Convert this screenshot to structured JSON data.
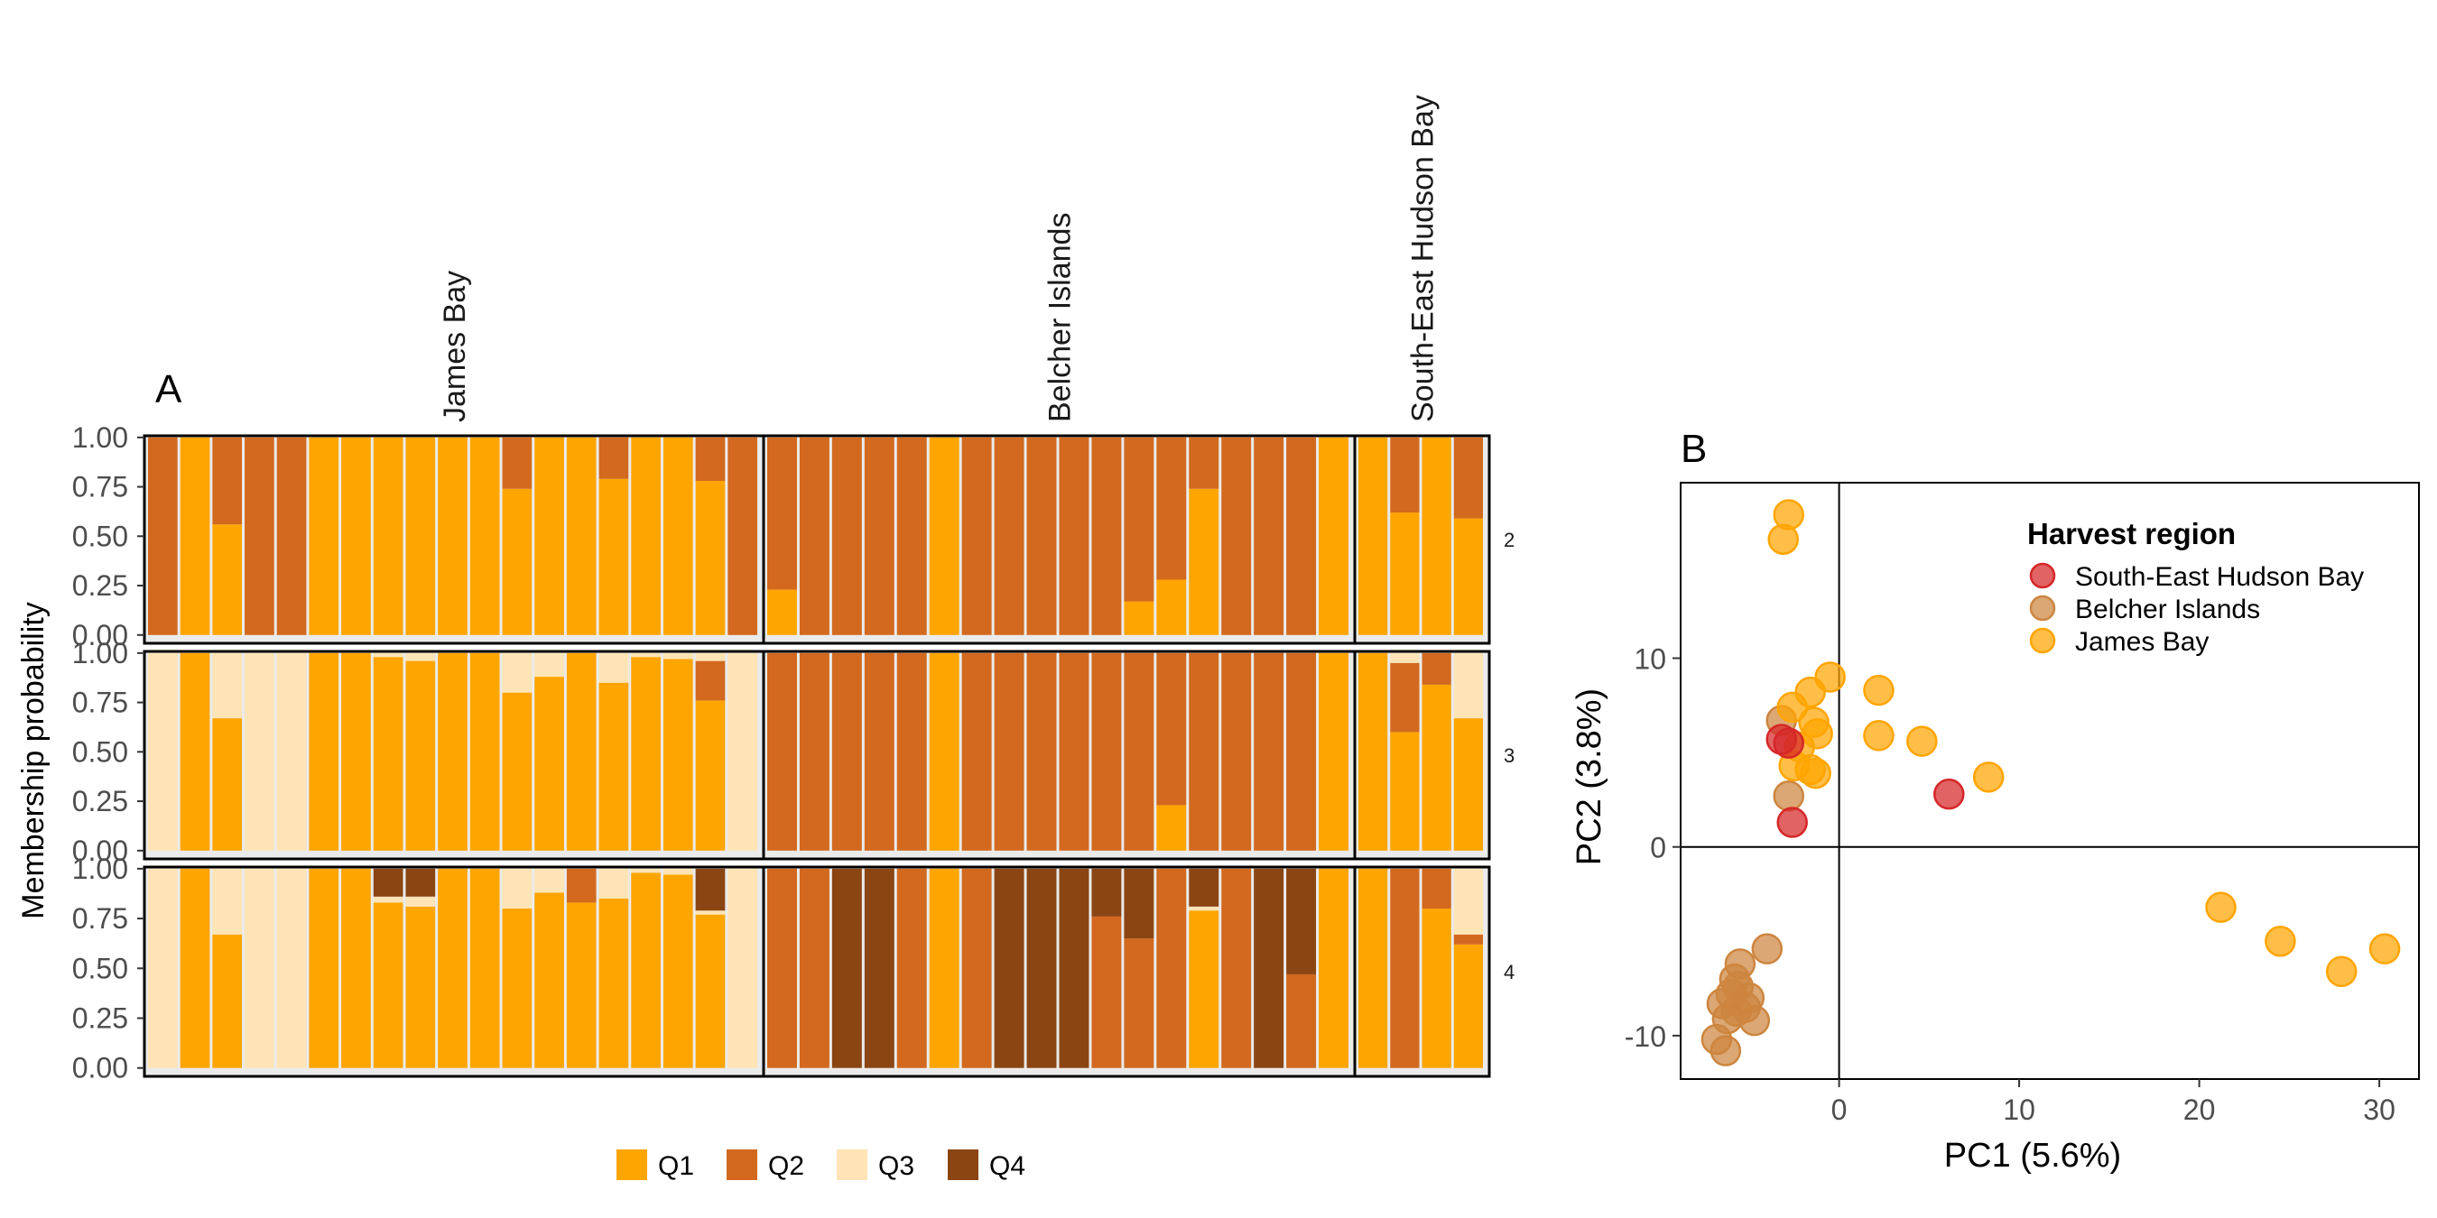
{
  "chart_data": [
    {
      "panel_label": "A",
      "type": "bar",
      "stacked": true,
      "ylabel": "Membership probability",
      "ylim": [
        0,
        1
      ],
      "y_ticks": [
        "0.00",
        "0.25",
        "0.50",
        "0.75",
        "1.00"
      ],
      "facet_columns": [
        {
          "label": "James Bay",
          "n": 19
        },
        {
          "label": "Belcher Islands",
          "n": 18
        },
        {
          "label": "South-East Hudson Bay",
          "n": 4
        }
      ],
      "legend": [
        {
          "label": "Q1",
          "color": "#FFA500"
        },
        {
          "label": "Q2",
          "color": "#D2691E"
        },
        {
          "label": "Q3",
          "color": "#FFE4B5"
        },
        {
          "label": "Q4",
          "color": "#8B4513"
        }
      ],
      "facets": [
        {
          "k_label": "2",
          "groups": [
            [
              [
                0,
                1
              ],
              [
                1,
                0
              ],
              [
                0.56,
                0.44
              ],
              [
                0,
                1
              ],
              [
                0,
                1
              ],
              [
                1,
                0
              ],
              [
                1,
                0
              ],
              [
                1,
                0
              ],
              [
                1,
                0
              ],
              [
                1,
                0
              ],
              [
                1,
                0
              ],
              [
                0.74,
                0.26
              ],
              [
                1,
                0
              ],
              [
                1,
                0
              ],
              [
                0.79,
                0.21
              ],
              [
                1,
                0
              ],
              [
                1,
                0
              ],
              [
                0.78,
                0.22
              ],
              [
                0,
                1
              ]
            ],
            [
              [
                0.23,
                0.77
              ],
              [
                0,
                1
              ],
              [
                0,
                1
              ],
              [
                0,
                1
              ],
              [
                0,
                1
              ],
              [
                1,
                0
              ],
              [
                0,
                1
              ],
              [
                0,
                1
              ],
              [
                0,
                1
              ],
              [
                0,
                1
              ],
              [
                0,
                1
              ],
              [
                0.17,
                0.83
              ],
              [
                0.28,
                0.72
              ],
              [
                0.74,
                0.26
              ],
              [
                0,
                1
              ],
              [
                0,
                1
              ],
              [
                0,
                1
              ],
              [
                1,
                0
              ]
            ],
            [
              [
                1,
                0
              ],
              [
                0.62,
                0.38
              ],
              [
                1,
                0
              ],
              [
                0.59,
                0.41
              ]
            ]
          ]
        },
        {
          "k_label": "3",
          "groups": [
            [
              [
                0,
                0,
                1
              ],
              [
                1,
                0,
                0
              ],
              [
                0.67,
                0,
                0.33
              ],
              [
                0,
                0,
                1
              ],
              [
                0,
                0,
                1
              ],
              [
                1,
                0,
                0
              ],
              [
                1,
                0,
                0
              ],
              [
                0.98,
                0,
                0.02
              ],
              [
                0.96,
                0,
                0.04
              ],
              [
                1,
                0,
                0
              ],
              [
                1,
                0,
                0
              ],
              [
                0.8,
                0,
                0.2
              ],
              [
                0.88,
                0,
                0.12
              ],
              [
                1,
                0,
                0
              ],
              [
                0.85,
                0,
                0.15
              ],
              [
                0.98,
                0,
                0.02
              ],
              [
                0.97,
                0,
                0.03
              ],
              [
                0.76,
                0.2,
                0.04
              ],
              [
                0,
                0,
                1
              ]
            ],
            [
              [
                0,
                1,
                0
              ],
              [
                0,
                1,
                0
              ],
              [
                0,
                1,
                0
              ],
              [
                0,
                1,
                0
              ],
              [
                0,
                1,
                0
              ],
              [
                1,
                0,
                0
              ],
              [
                0,
                1,
                0
              ],
              [
                0,
                1,
                0
              ],
              [
                0,
                1,
                0
              ],
              [
                0,
                1,
                0
              ],
              [
                0,
                1,
                0
              ],
              [
                0,
                1,
                0
              ],
              [
                0.23,
                0.77,
                0
              ],
              [
                0,
                1,
                0
              ],
              [
                0,
                1,
                0
              ],
              [
                0,
                1,
                0
              ],
              [
                0,
                1,
                0
              ],
              [
                1,
                0,
                0
              ]
            ],
            [
              [
                1,
                0,
                0
              ],
              [
                0.6,
                0.35,
                0.05
              ],
              [
                0.84,
                0.16,
                0
              ],
              [
                0.67,
                0,
                0.33
              ]
            ]
          ]
        },
        {
          "k_label": "4",
          "groups": [
            [
              [
                0,
                0,
                1,
                0
              ],
              [
                1,
                0,
                0,
                0
              ],
              [
                0.67,
                0,
                0.33,
                0
              ],
              [
                0,
                0,
                1,
                0
              ],
              [
                0,
                0,
                1,
                0
              ],
              [
                1,
                0,
                0,
                0
              ],
              [
                1,
                0,
                0,
                0
              ],
              [
                0.83,
                0,
                0.03,
                0.14
              ],
              [
                0.81,
                0,
                0.05,
                0.14
              ],
              [
                1,
                0,
                0,
                0
              ],
              [
                1,
                0,
                0,
                0
              ],
              [
                0.8,
                0,
                0.2,
                0
              ],
              [
                0.88,
                0,
                0.12,
                0
              ],
              [
                0.83,
                0.17,
                0,
                0
              ],
              [
                0.85,
                0,
                0.15,
                0
              ],
              [
                0.98,
                0,
                0.02,
                0
              ],
              [
                0.97,
                0,
                0.03,
                0
              ],
              [
                0.77,
                0,
                0.02,
                0.21
              ],
              [
                0,
                0,
                1,
                0
              ]
            ],
            [
              [
                0,
                1,
                0,
                0
              ],
              [
                0,
                1,
                0,
                0
              ],
              [
                0,
                0,
                0,
                1
              ],
              [
                0,
                0,
                0,
                1
              ],
              [
                0,
                1,
                0,
                0
              ],
              [
                1,
                0,
                0,
                0
              ],
              [
                0,
                1,
                0,
                0
              ],
              [
                0,
                0,
                0,
                1
              ],
              [
                0,
                0,
                0,
                1
              ],
              [
                0,
                0,
                0,
                1
              ],
              [
                0,
                0.76,
                0,
                0.24
              ],
              [
                0,
                0.65,
                0,
                0.35
              ],
              [
                0,
                1,
                0,
                0
              ],
              [
                0.79,
                0,
                0.02,
                0.19
              ],
              [
                0,
                1,
                0,
                0
              ],
              [
                0,
                0,
                0,
                1
              ],
              [
                0,
                0.47,
                0,
                0.53
              ],
              [
                1,
                0,
                0,
                0
              ]
            ],
            [
              [
                1,
                0,
                0,
                0
              ],
              [
                0,
                1,
                0,
                0
              ],
              [
                0.8,
                0.2,
                0,
                0
              ],
              [
                0.62,
                0.05,
                0.33,
                0
              ]
            ]
          ]
        }
      ]
    },
    {
      "panel_label": "B",
      "type": "scatter",
      "xlabel": "PC1 (5.6%)",
      "ylabel": "PC2 (3.8%)",
      "xlim": [
        -8.8,
        32.2
      ],
      "ylim": [
        -12.3,
        19.3
      ],
      "x_ticks": [
        "0",
        "10",
        "20",
        "30"
      ],
      "y_ticks": [
        "-10",
        "0",
        "10"
      ],
      "x_tick_values": [
        0,
        10,
        20,
        30
      ],
      "y_tick_values": [
        -10,
        0,
        10
      ],
      "zero_lines": true,
      "legend_title": "Harvest region",
      "legend_position": "top-right",
      "series": [
        {
          "name": "South-East Hudson Bay",
          "color": "#D62728",
          "x": [
            -2.6,
            -2.8,
            -3.2,
            6.1
          ],
          "y": [
            1.3,
            5.5,
            5.7,
            2.8
          ]
        },
        {
          "name": "Belcher Islands",
          "color": "#CD853F",
          "x": [
            -2.8,
            -3.2,
            -4.0,
            -5.5,
            -5.8,
            -6.0,
            -6.5,
            -6.2,
            -5.7,
            -5.0,
            -4.7,
            -6.8,
            -6.3,
            -5.2,
            -5.6
          ],
          "y": [
            2.7,
            6.7,
            -5.4,
            -6.2,
            -7.0,
            -7.8,
            -8.3,
            -9.1,
            -8.7,
            -8.0,
            -9.2,
            -10.2,
            -10.8,
            -8.5,
            -7.4
          ]
        },
        {
          "name": "James Bay",
          "color": "#FFA500",
          "x": [
            -2.8,
            -3.1,
            -0.5,
            -1.6,
            -2.6,
            -1.2,
            -1.4,
            -2.2,
            -2.5,
            -1.3,
            -1.6,
            2.2,
            2.2,
            4.6,
            8.3,
            21.2,
            24.5,
            27.9,
            30.3
          ],
          "y": [
            17.6,
            16.3,
            9.0,
            8.2,
            7.4,
            6.0,
            6.6,
            5.3,
            4.3,
            3.9,
            4.1,
            8.3,
            5.9,
            5.6,
            3.7,
            -3.2,
            -5.0,
            -6.6,
            -5.4
          ]
        }
      ]
    }
  ]
}
